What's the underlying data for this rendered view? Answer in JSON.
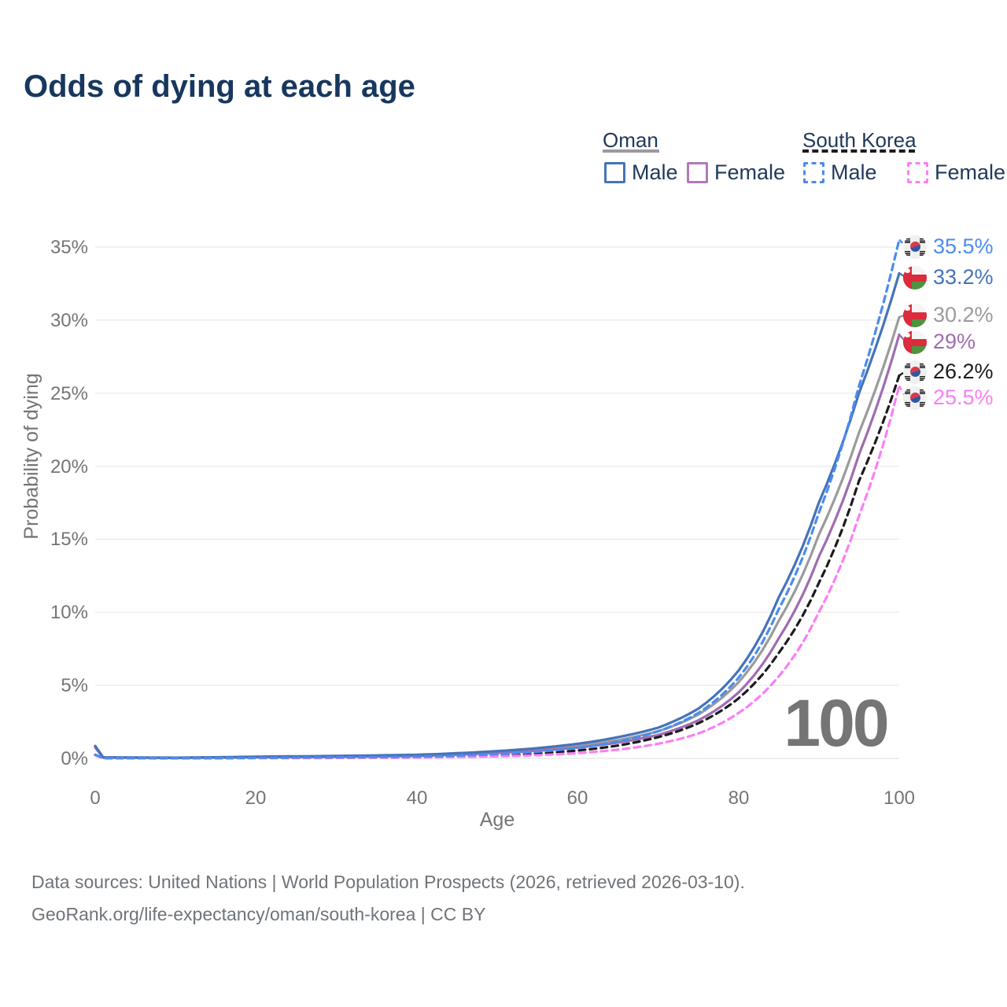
{
  "title": "Odds of dying at each age",
  "legend": {
    "groups": [
      {
        "label": "Oman",
        "style": "solid",
        "color": "#9b9b9b"
      },
      {
        "label": "South Korea",
        "style": "dashed",
        "color": "#1c1c1c"
      }
    ],
    "items": [
      {
        "label": "Male",
        "color": "#4573b9",
        "dash": false
      },
      {
        "label": "Female",
        "color": "#b07ab8",
        "dash": false
      },
      {
        "label": "Male",
        "color": "#4b8bf0",
        "dash": true
      },
      {
        "label": "Female",
        "color": "#fb7ef5",
        "dash": true
      }
    ]
  },
  "chart": {
    "ylabel": "Probability of dying",
    "xlabel": "Age",
    "yticks": [
      "0%",
      "5%",
      "10%",
      "15%",
      "20%",
      "25%",
      "30%",
      "35%"
    ],
    "xticks": [
      "0",
      "20",
      "40",
      "60",
      "80",
      "100"
    ],
    "watermark": "100"
  },
  "end_labels": [
    {
      "pct": "35.5%",
      "country": "South Korea",
      "sex": "Male",
      "color": "#4b8bf0"
    },
    {
      "pct": "33.2%",
      "country": "Oman",
      "sex": "Male",
      "color": "#4573b9"
    },
    {
      "pct": "30.2%",
      "country": "Oman",
      "sex": "Both",
      "color": "#9b9b9b"
    },
    {
      "pct": "29%",
      "country": "Oman",
      "sex": "Female",
      "color": "#a06cb0"
    },
    {
      "pct": "26.2%",
      "country": "South Korea",
      "sex": "Both",
      "color": "#1c1c1c"
    },
    {
      "pct": "25.5%",
      "country": "South Korea",
      "sex": "Female",
      "color": "#fb7ef5"
    }
  ],
  "chart_data": {
    "type": "line",
    "title": "Odds of dying at each age",
    "xlabel": "Age",
    "ylabel": "Probability of dying",
    "units": "percent",
    "x_range": [
      0,
      100
    ],
    "y_range": [
      0,
      35
    ],
    "grid": "horizontal",
    "legend_position": "top-right",
    "ages": [
      0,
      1,
      10,
      20,
      30,
      40,
      50,
      55,
      60,
      65,
      70,
      75,
      80,
      85,
      90,
      95,
      100
    ],
    "series": [
      {
        "id": "oman-total",
        "name": "Oman (both sexes)",
        "group": "Oman",
        "sex": "Both",
        "color": "#9b9b9b",
        "dash": false,
        "end_label": "30.2%",
        "values": [
          0.8,
          0.06,
          0.045,
          0.1,
          0.14,
          0.21,
          0.44,
          0.6,
          0.86,
          1.25,
          1.85,
          3.0,
          5.2,
          9.4,
          15.3,
          22.3,
          30.2
        ]
      },
      {
        "id": "oman-female",
        "name": "Oman — Female",
        "group": "Oman",
        "sex": "Female",
        "color": "#a06cb0",
        "dash": false,
        "end_label": "29%",
        "values": [
          0.75,
          0.055,
          0.04,
          0.08,
          0.11,
          0.17,
          0.38,
          0.52,
          0.74,
          1.08,
          1.6,
          2.6,
          4.5,
          8.2,
          13.8,
          20.8,
          29.0
        ]
      },
      {
        "id": "oman-male",
        "name": "Oman — Male",
        "group": "Oman",
        "sex": "Male",
        "color": "#4573b9",
        "dash": false,
        "end_label": "33.2%",
        "values": [
          0.85,
          0.07,
          0.05,
          0.12,
          0.17,
          0.25,
          0.5,
          0.7,
          1.0,
          1.45,
          2.1,
          3.4,
          6.0,
          11.0,
          17.5,
          25.0,
          33.2
        ]
      },
      {
        "id": "south-korea-total",
        "name": "South Korea (both sexes)",
        "group": "South Korea",
        "sex": "Both",
        "color": "#1c1c1c",
        "dash": true,
        "end_label": "26.2%",
        "values": [
          0.24,
          0.018,
          0.011,
          0.03,
          0.05,
          0.09,
          0.22,
          0.34,
          0.54,
          0.88,
          1.45,
          2.4,
          4.1,
          7.2,
          12.0,
          19.0,
          26.2
        ]
      },
      {
        "id": "south-korea-female",
        "name": "South Korea — Female",
        "group": "South Korea",
        "sex": "Female",
        "color": "#fb7ef5",
        "dash": true,
        "end_label": "25.5%",
        "values": [
          0.22,
          0.015,
          0.01,
          0.02,
          0.03,
          0.06,
          0.14,
          0.22,
          0.36,
          0.6,
          1.0,
          1.7,
          3.1,
          5.6,
          10.0,
          16.6,
          25.5
        ]
      },
      {
        "id": "south-korea-male",
        "name": "South Korea — Male",
        "group": "South Korea",
        "sex": "Male",
        "color": "#4b8bf0",
        "dash": true,
        "end_label": "35.5%",
        "values": [
          0.25,
          0.02,
          0.012,
          0.04,
          0.07,
          0.12,
          0.3,
          0.46,
          0.72,
          1.15,
          1.85,
          3.1,
          5.5,
          10.2,
          16.8,
          25.5,
          35.5
        ]
      }
    ]
  },
  "footer": {
    "line1": "Data sources: United Nations | World Population Prospects (2026, retrieved 2026-03-10).",
    "line2": "GeoRank.org/life-expectancy/oman/south-korea | CC BY"
  }
}
